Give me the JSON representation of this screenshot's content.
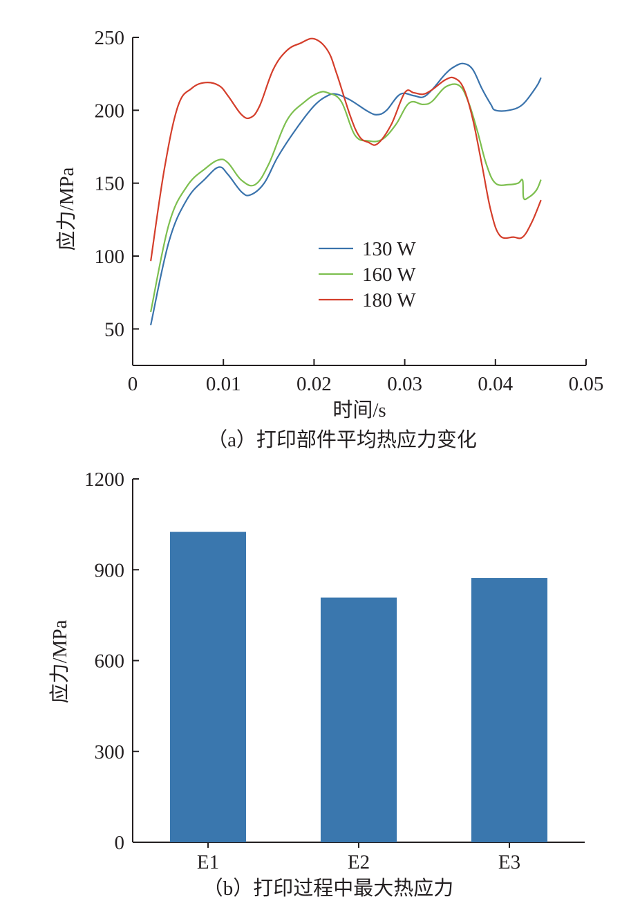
{
  "chart_data": [
    {
      "type": "line",
      "title": "",
      "caption": "（a）打印部件平均热应力变化",
      "xlabel": "时间/s",
      "ylabel": "应力/MPa",
      "xlim": [
        0,
        0.05
      ],
      "ylim": [
        25,
        250
      ],
      "xticks": [
        0,
        0.01,
        0.02,
        0.03,
        0.04,
        0.05
      ],
      "xtick_labels": [
        "0",
        "0.01",
        "0.02",
        "0.03",
        "0.04",
        "0.05"
      ],
      "yticks": [
        50,
        100,
        150,
        200,
        250
      ],
      "ytick_labels": [
        "50",
        "100",
        "150",
        "200",
        "250"
      ],
      "grid": false,
      "legend_position": "center",
      "series": [
        {
          "name": "130 W",
          "color": "#3a73ac",
          "x": [
            0.002,
            0.004,
            0.006,
            0.008,
            0.0095,
            0.0105,
            0.012,
            0.013,
            0.0145,
            0.016,
            0.018,
            0.02,
            0.0215,
            0.0225,
            0.024,
            0.026,
            0.027,
            0.028,
            0.0295,
            0.031,
            0.032,
            0.033,
            0.0345,
            0.0355,
            0.0365,
            0.0375,
            0.0385,
            0.0395,
            0.04,
            0.0415,
            0.043,
            0.0445,
            0.045
          ],
          "y": [
            53,
            110,
            139,
            153,
            161,
            156,
            144,
            142,
            150,
            168,
            187,
            203,
            210,
            211,
            207,
            199,
            197,
            200,
            211,
            210,
            209,
            214,
            225,
            230,
            232,
            228,
            215,
            204,
            200,
            200,
            204,
            216,
            222
          ]
        },
        {
          "name": "160 W",
          "color": "#7dbf4f",
          "x": [
            0.002,
            0.004,
            0.006,
            0.008,
            0.0095,
            0.0105,
            0.012,
            0.0135,
            0.015,
            0.017,
            0.019,
            0.0205,
            0.0215,
            0.023,
            0.0245,
            0.026,
            0.0275,
            0.029,
            0.0305,
            0.032,
            0.033,
            0.0345,
            0.036,
            0.037,
            0.038,
            0.039,
            0.04,
            0.0415,
            0.0425,
            0.043,
            0.0431,
            0.0436,
            0.0445,
            0.045
          ],
          "y": [
            62,
            122,
            148,
            160,
            166,
            164,
            152,
            149,
            163,
            193,
            206,
            212,
            212,
            206,
            183,
            179,
            180,
            190,
            205,
            204,
            206,
            216,
            217,
            206,
            186,
            163,
            150,
            149,
            150,
            152,
            140,
            140,
            145,
            152
          ]
        },
        {
          "name": "180 W",
          "color": "#d43e2b",
          "x": [
            0.002,
            0.0035,
            0.005,
            0.0065,
            0.008,
            0.0095,
            0.0105,
            0.012,
            0.013,
            0.014,
            0.0155,
            0.017,
            0.0185,
            0.02,
            0.0215,
            0.0225,
            0.024,
            0.025,
            0.026,
            0.027,
            0.0285,
            0.03,
            0.031,
            0.032,
            0.033,
            0.0345,
            0.0355,
            0.0365,
            0.0375,
            0.0385,
            0.0395,
            0.0405,
            0.042,
            0.043,
            0.044,
            0.045
          ],
          "y": [
            97,
            160,
            203,
            215,
            219,
            217,
            210,
            197,
            195,
            203,
            228,
            241,
            246,
            249,
            241,
            225,
            196,
            182,
            178,
            177,
            190,
            212,
            212,
            211,
            214,
            221,
            222,
            215,
            194,
            163,
            131,
            114,
            113,
            113,
            123,
            138
          ]
        }
      ]
    },
    {
      "type": "bar",
      "title": "",
      "caption": "（b）打印过程中最大热应力",
      "xlabel": "",
      "ylabel": "应力/MPa",
      "ylim": [
        0,
        1200
      ],
      "yticks": [
        0,
        300,
        600,
        900,
        1200
      ],
      "ytick_labels": [
        "0",
        "300",
        "600",
        "900",
        "1200"
      ],
      "grid": false,
      "color": "#3a77ae",
      "categories": [
        "E1",
        "E2",
        "E3"
      ],
      "values": [
        1025,
        808,
        873
      ]
    }
  ]
}
